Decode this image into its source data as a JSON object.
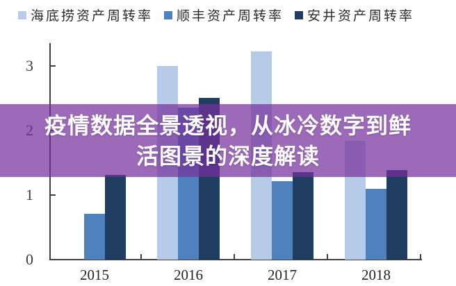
{
  "overlay": {
    "title_line1": "疫情数据全景透视，从冰冷数字到鲜",
    "title_line2": "活图景的深度解读",
    "background": "rgba(118,48,156,0.72)",
    "text_color": "#ffffff"
  },
  "legend": {
    "items": [
      {
        "label": "海底捞资产周转率",
        "color": "#b5cbe7"
      },
      {
        "label": "顺丰资产周转率",
        "color": "#4f81bd"
      },
      {
        "label": "安井资产周转率",
        "color": "#1f3c61"
      }
    ]
  },
  "chart_data": {
    "type": "bar",
    "title": "",
    "xlabel": "",
    "ylabel": "",
    "categories": [
      "2015",
      "2016",
      "2017",
      "2018"
    ],
    "series": [
      {
        "name": "海底捞资产周转率",
        "color": "#b5cbe7",
        "values": [
          null,
          3.0,
          3.23,
          1.84
        ]
      },
      {
        "name": "顺丰资产周转率",
        "color": "#4f81bd",
        "values": [
          0.71,
          2.35,
          1.21,
          1.1
        ]
      },
      {
        "name": "安井资产周转率",
        "color": "#1f3c61",
        "values": [
          1.31,
          2.51,
          1.36,
          1.39
        ]
      }
    ],
    "ylim": [
      0,
      3.5
    ],
    "yticks": [
      0,
      1,
      2,
      3
    ],
    "grid": false,
    "legend_position": "top",
    "axis_color": "#3f3f3f"
  }
}
